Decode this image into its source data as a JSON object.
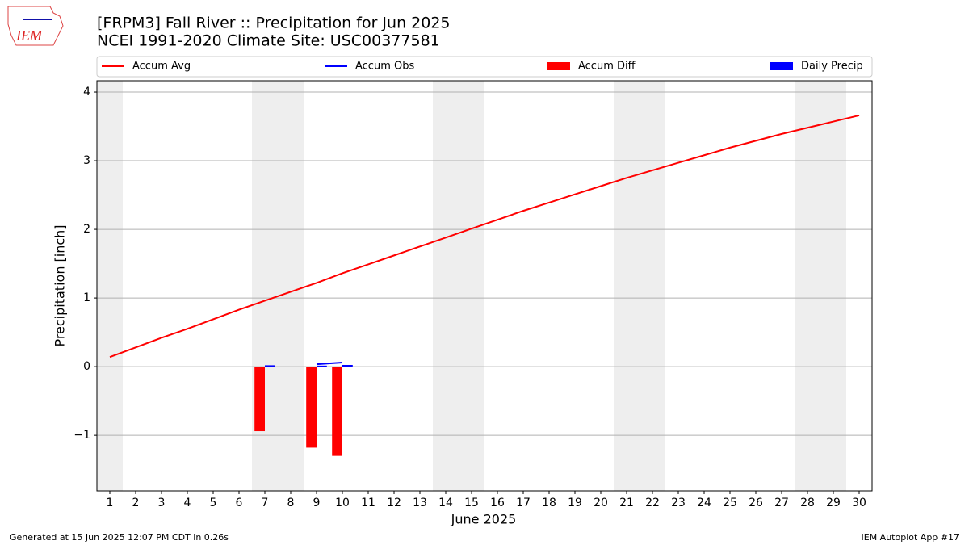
{
  "logo_text": "IEM",
  "footer": {
    "left": "Generated at 15 Jun 2025 12:07 PM CDT in 0.26s",
    "right": "IEM Autoplot App #17"
  },
  "chart_data": {
    "type": "combo",
    "title": "[FRPM3] Fall River :: Precipitation for Jun 2025",
    "subtitle": "NCEI 1991-2020 Climate Site: USC00377581",
    "xlabel": "June 2025",
    "ylabel": "Precipitation [inch]",
    "x": [
      1,
      2,
      3,
      4,
      5,
      6,
      7,
      8,
      9,
      10,
      11,
      12,
      13,
      14,
      15,
      16,
      17,
      18,
      19,
      20,
      21,
      22,
      23,
      24,
      25,
      26,
      27,
      28,
      29,
      30
    ],
    "xlim": [
      0.5,
      30.5
    ],
    "xticks": [
      1,
      2,
      3,
      4,
      5,
      6,
      7,
      8,
      9,
      10,
      11,
      12,
      13,
      14,
      15,
      16,
      17,
      18,
      19,
      20,
      21,
      22,
      23,
      24,
      25,
      26,
      27,
      28,
      29,
      30
    ],
    "ylim": [
      -1.81,
      4.165
    ],
    "yticks": [
      {
        "value": -1,
        "label": "−1"
      },
      0,
      1,
      2,
      3,
      4
    ],
    "grid": true,
    "legend": "top",
    "shaded_spans": [
      [
        0.5,
        1.5
      ],
      [
        6.5,
        8.5
      ],
      [
        13.5,
        15.5
      ],
      [
        20.5,
        22.5
      ],
      [
        27.5,
        29.5
      ]
    ],
    "series": [
      {
        "name": "Accum Avg",
        "type": "line",
        "color": "#ff0000",
        "values": [
          0.14,
          0.28,
          0.42,
          0.55,
          0.69,
          0.83,
          0.96,
          1.09,
          1.22,
          1.36,
          1.49,
          1.62,
          1.75,
          1.88,
          2.01,
          2.14,
          2.27,
          2.39,
          2.51,
          2.63,
          2.75,
          2.86,
          2.97,
          3.08,
          3.19,
          3.29,
          3.39,
          3.48,
          3.57,
          3.66
        ]
      },
      {
        "name": "Accum Obs",
        "type": "line",
        "color": "#0000ff",
        "values": [
          null,
          null,
          null,
          null,
          null,
          null,
          0.02,
          null,
          0.035,
          0.06,
          null,
          null,
          null,
          null,
          null,
          null,
          null,
          null,
          null,
          null,
          null,
          null,
          null,
          null,
          null,
          null,
          null,
          null,
          null,
          null
        ]
      },
      {
        "name": "Accum Diff",
        "type": "bar",
        "offset": -0.2,
        "color": "#ff0000",
        "values": [
          null,
          null,
          null,
          null,
          null,
          null,
          -0.94,
          null,
          -1.18,
          -1.3,
          null,
          null,
          null,
          null,
          null,
          null,
          null,
          null,
          null,
          null,
          null,
          null,
          null,
          null,
          null,
          null,
          null,
          null,
          null,
          null
        ]
      },
      {
        "name": "Daily Precip",
        "type": "bar",
        "offset": 0.2,
        "color": "#0000ff",
        "values": [
          null,
          null,
          null,
          null,
          null,
          null,
          0.02,
          null,
          0.015,
          0.025,
          null,
          null,
          null,
          null,
          null,
          null,
          null,
          null,
          null,
          null,
          null,
          null,
          null,
          null,
          null,
          null,
          null,
          null,
          null,
          null
        ]
      }
    ]
  }
}
